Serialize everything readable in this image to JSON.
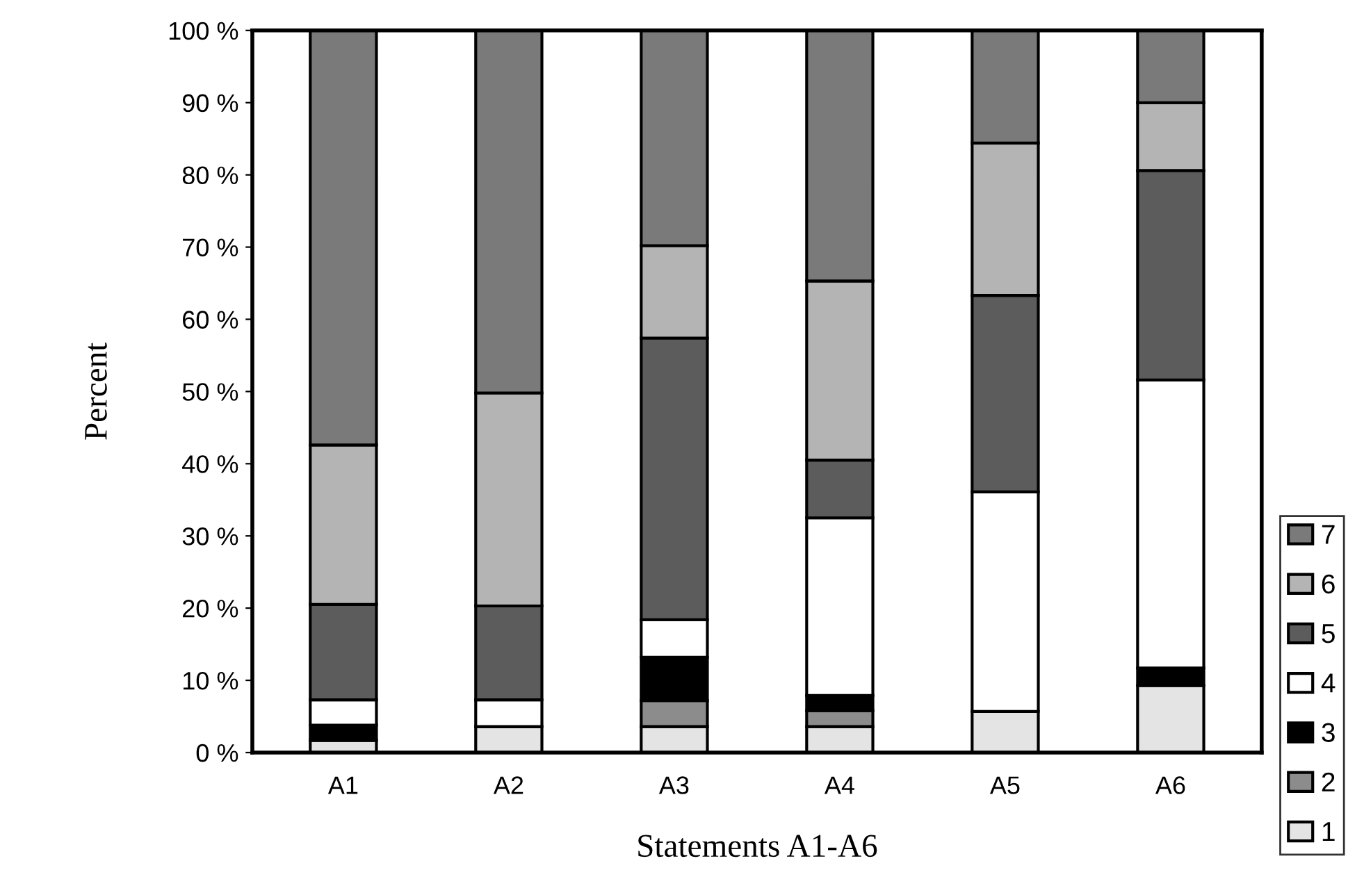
{
  "chart_data": {
    "type": "bar",
    "stacked": true,
    "xlabel": "Statements A1-A6",
    "ylabel": "Percent",
    "categories": [
      "A1",
      "A2",
      "A3",
      "A4",
      "A5",
      "A6"
    ],
    "series": [
      {
        "name": "1",
        "color": "#e4e4e4",
        "values": [
          1.7,
          3.6,
          3.6,
          3.6,
          5.7,
          9.3
        ]
      },
      {
        "name": "2",
        "color": "#8c8c8c",
        "values": [
          0,
          0,
          3.6,
          2.2,
          0,
          0
        ]
      },
      {
        "name": "3",
        "color": "#000000",
        "values": [
          2.1,
          0,
          6.0,
          2.1,
          0,
          2.4
        ]
      },
      {
        "name": "4",
        "color": "#ffffff",
        "values": [
          3.5,
          3.7,
          5.2,
          24.6,
          30.4,
          39.9
        ]
      },
      {
        "name": "5",
        "color": "#5c5c5c",
        "values": [
          13.2,
          13.0,
          39.0,
          8.0,
          27.2,
          29.0
        ]
      },
      {
        "name": "6",
        "color": "#b4b4b4",
        "values": [
          22.1,
          29.5,
          12.8,
          24.8,
          21.1,
          9.4
        ]
      },
      {
        "name": "7",
        "color": "#7a7a7a",
        "values": [
          57.4,
          50.2,
          29.8,
          34.7,
          15.6,
          10.0
        ]
      }
    ],
    "ylim": [
      0,
      100
    ],
    "yticks": [
      {
        "value": 0,
        "label": "0 %"
      },
      {
        "value": 10,
        "label": "10 %"
      },
      {
        "value": 20,
        "label": "20 %"
      },
      {
        "value": 30,
        "label": "30 %"
      },
      {
        "value": 40,
        "label": "40 %"
      },
      {
        "value": 50,
        "label": "50 %"
      },
      {
        "value": 60,
        "label": "60 %"
      },
      {
        "value": 70,
        "label": "70 %"
      },
      {
        "value": 80,
        "label": "80 %"
      },
      {
        "value": 90,
        "label": "90 %"
      },
      {
        "value": 100,
        "label": "100 %"
      }
    ],
    "legend": "bottom right",
    "grid": false
  }
}
